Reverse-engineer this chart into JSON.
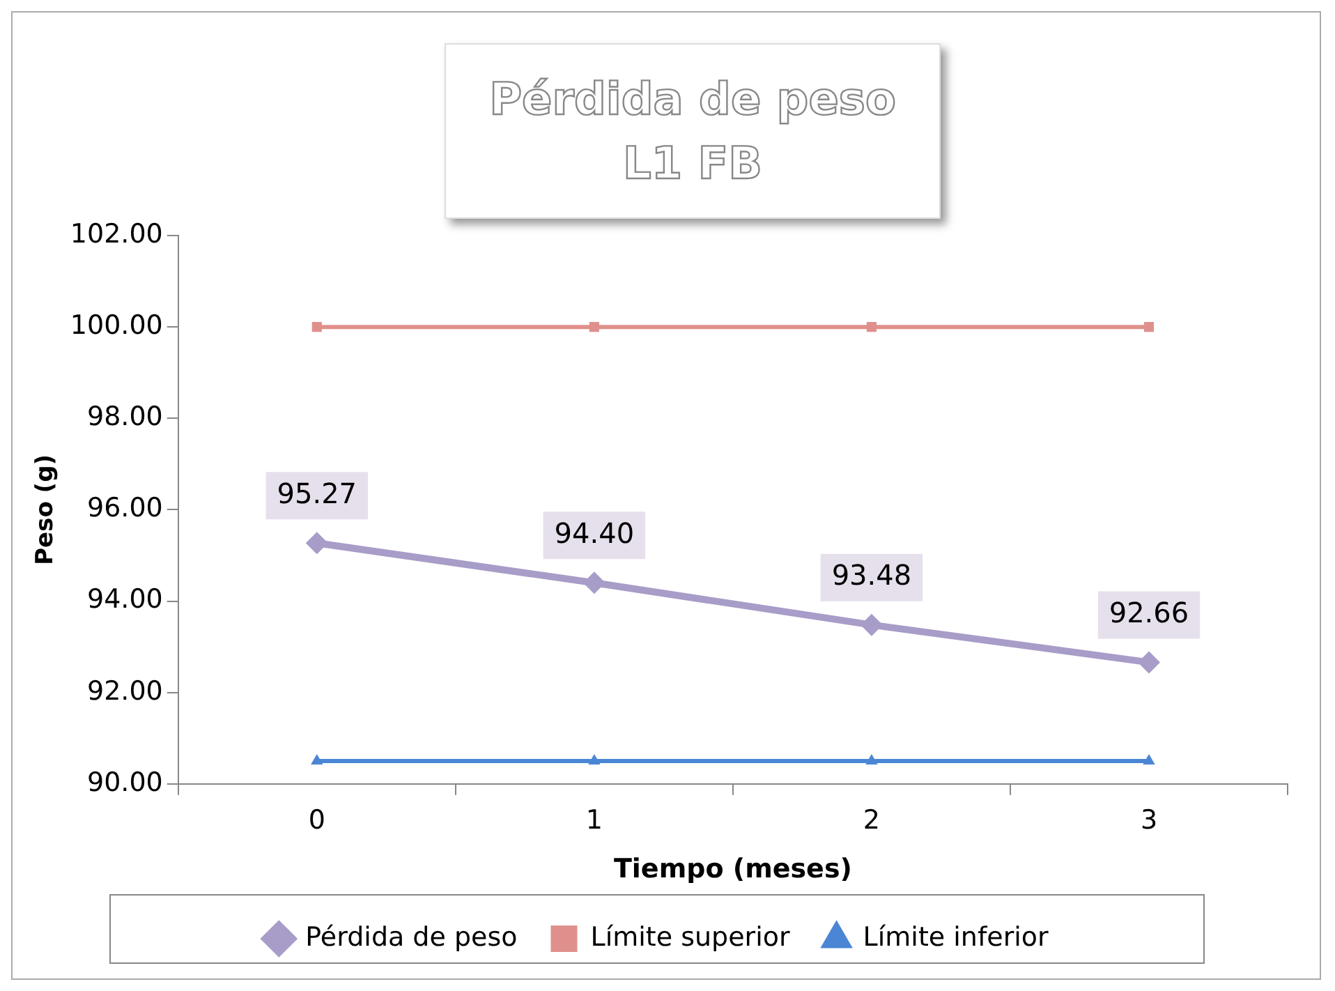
{
  "chart_data": {
    "type": "line",
    "title": "Pérdida de peso",
    "subtitle": "L1 FB",
    "xlabel": "Tiempo (meses)",
    "ylabel": "Peso (g)",
    "categories": [
      "0",
      "1",
      "2",
      "3"
    ],
    "series": [
      {
        "name": "Pérdida de peso",
        "color": "#a89cc8",
        "values": [
          95.27,
          94.4,
          93.48,
          92.66
        ],
        "marker": "diamond",
        "value_labels": [
          "95.27",
          "94.40",
          "93.48",
          "92.66"
        ]
      },
      {
        "name": "Límite superior",
        "color": "#e0908c",
        "values": [
          100,
          100,
          100,
          100
        ],
        "marker": "square"
      },
      {
        "name": "Límite inferior",
        "color": "#4a86d4",
        "values": [
          90.5,
          90.5,
          90.5,
          90.5
        ],
        "marker": "triangle"
      }
    ],
    "ylim": [
      90,
      102
    ],
    "yticks": [
      {
        "value": 90,
        "label": "90.00"
      },
      {
        "value": 92,
        "label": "92.00"
      },
      {
        "value": 94,
        "label": "94.00"
      },
      {
        "value": 96,
        "label": "96.00"
      },
      {
        "value": 98,
        "label": "98.00"
      },
      {
        "value": 100,
        "label": "100.00"
      },
      {
        "value": 102,
        "label": "102.00"
      }
    ],
    "grid": false,
    "legend": "bottom"
  }
}
